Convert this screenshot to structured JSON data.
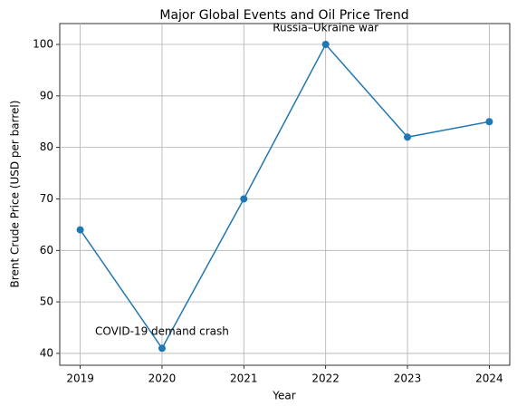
{
  "chart_data": {
    "type": "line",
    "title": "Major Global Events and Oil Price Trend",
    "x_label": "Year",
    "y_label": "Brent Crude Price (USD per barrel)",
    "x": [
      2019,
      2020,
      2021,
      2022,
      2023,
      2024
    ],
    "values": [
      64,
      41,
      70,
      100,
      82,
      85
    ],
    "color": "#1f77b4",
    "xlim": [
      2018.75,
      2024.25
    ],
    "xticks": [
      2019,
      2020,
      2021,
      2022,
      2023,
      2024
    ],
    "ylim": [
      37.7,
      104.05
    ],
    "yticks": [
      40,
      50,
      60,
      70,
      80,
      90,
      100
    ],
    "grid": true,
    "annotations": [
      {
        "text": "COVID-19 demand crash",
        "x": 2020
      },
      {
        "text": "Russia–Ukraine war",
        "x": 2022
      }
    ]
  }
}
